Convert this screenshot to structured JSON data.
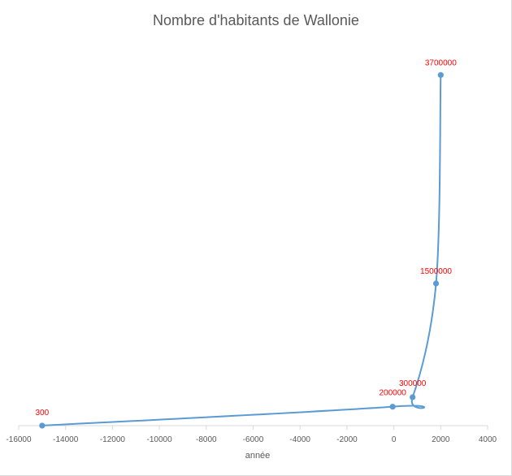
{
  "chart_data": {
    "type": "scatter",
    "style": "smooth-line-with-markers",
    "title": "Nombre d'habitants de Wallonie",
    "xlabel": "année",
    "ylabel": "",
    "xlim": [
      -16000,
      4000
    ],
    "x_ticks": [
      -16000,
      -14000,
      -12000,
      -10000,
      -8000,
      -6000,
      -4000,
      -2000,
      0,
      2000,
      4000
    ],
    "ylim": [
      0,
      3900000
    ],
    "y_axis_labels_shown": false,
    "grid": false,
    "legend": "none",
    "series": [
      {
        "x": [
          -15000,
          -50,
          800,
          1800,
          2000
        ],
        "y": [
          300,
          200000,
          300000,
          1500000,
          3700000
        ],
        "data_labels": [
          "300",
          "200000",
          "300000",
          "1500000",
          "3700000"
        ],
        "color": "#5b9bd5"
      }
    ],
    "label_color": "#ff0000"
  }
}
